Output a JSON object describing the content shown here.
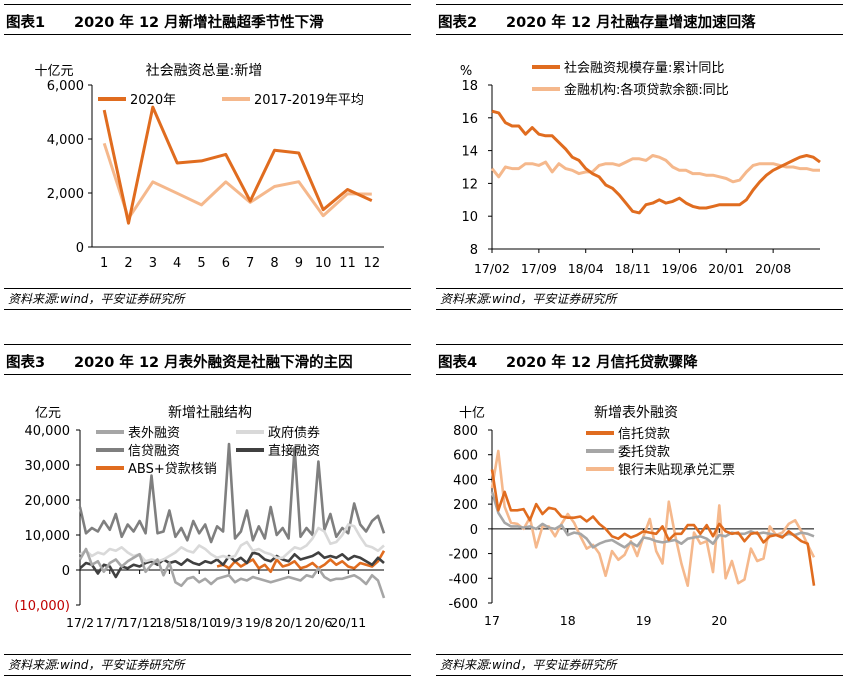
{
  "panels": [
    {
      "num": "图表1",
      "title": "2020 年 12 月新增社融超季节性下滑",
      "source": "资料来源:wind，平安证券研究所"
    },
    {
      "num": "图表2",
      "title": "2020 年 12 月社融存量增速加速回落",
      "source": "资料来源:wind，平安证券研究所"
    },
    {
      "num": "图表3",
      "title": "2020 年 12 月表外融资是社融下滑的主因",
      "source": "资料来源:wind，平安证券研究所"
    },
    {
      "num": "图表4",
      "title": "2020 年 12 月信托贷款骤降",
      "source": "资料来源:wind，平安证券研究所"
    }
  ],
  "colors": {
    "orange": "#E06C1F",
    "lightorange": "#F5B88C",
    "gray": "#A6A6A6",
    "lightgray": "#D9D9D9",
    "darkgray": "#7F7F7F",
    "black": "#404040"
  },
  "chart_data": [
    {
      "type": "line",
      "title": "社会融资总量:新增",
      "unit": "十亿元",
      "categories": [
        "1",
        "2",
        "3",
        "4",
        "5",
        "6",
        "7",
        "8",
        "9",
        "10",
        "11",
        "12"
      ],
      "ylim": [
        0,
        6000
      ],
      "yticks": [
        "0",
        "2,000",
        "4,000",
        "6,000"
      ],
      "series": [
        {
          "name": "2020年",
          "color": "#E06C1F",
          "values": [
            5070,
            880,
            5180,
            3110,
            3190,
            3430,
            1700,
            3580,
            3480,
            1380,
            2130,
            1720
          ]
        },
        {
          "name": "2017-2019年平均",
          "color": "#F5B88C",
          "values": [
            3840,
            1060,
            2410,
            1990,
            1560,
            2410,
            1650,
            2240,
            2420,
            1160,
            1970,
            1960
          ]
        }
      ]
    },
    {
      "type": "line",
      "unit": "%",
      "xlabels": [
        "17/02",
        "17/09",
        "18/04",
        "18/11",
        "19/06",
        "20/01",
        "20/08"
      ],
      "ylim": [
        8,
        18
      ],
      "yticks": [
        "8",
        "10",
        "12",
        "14",
        "16",
        "18"
      ],
      "series": [
        {
          "name": "社会融资规模存量:累计同比",
          "color": "#E06C1F",
          "values": [
            16.4,
            16.3,
            15.7,
            15.5,
            15.5,
            15.0,
            15.4,
            15.0,
            14.9,
            14.9,
            14.5,
            14.1,
            13.6,
            13.4,
            12.9,
            12.6,
            12.4,
            11.9,
            11.7,
            11.3,
            10.8,
            10.3,
            10.2,
            10.7,
            10.8,
            11.0,
            10.8,
            10.9,
            11.1,
            10.8,
            10.6,
            10.5,
            10.5,
            10.6,
            10.7,
            10.7,
            10.7,
            10.7,
            11.0,
            11.6,
            12.1,
            12.5,
            12.8,
            13.0,
            13.2,
            13.4,
            13.6,
            13.7,
            13.6,
            13.3
          ]
        },
        {
          "name": "金融机构:各项贷款余额:同比",
          "color": "#F5B88C",
          "values": [
            12.9,
            12.4,
            13.0,
            12.9,
            12.9,
            13.2,
            13.2,
            13.1,
            13.3,
            12.7,
            13.2,
            12.9,
            12.8,
            12.6,
            12.7,
            12.7,
            13.1,
            13.2,
            13.2,
            13.1,
            13.3,
            13.5,
            13.5,
            13.4,
            13.7,
            13.6,
            13.4,
            13.0,
            12.8,
            12.8,
            12.6,
            12.6,
            12.5,
            12.5,
            12.4,
            12.3,
            12.1,
            12.2,
            12.7,
            13.1,
            13.2,
            13.2,
            13.2,
            13.1,
            13.0,
            13.0,
            12.9,
            12.9,
            12.8,
            12.8
          ]
        }
      ]
    },
    {
      "type": "line",
      "title": "新增社融结构",
      "unit": "亿元",
      "xlabels": [
        "17/2",
        "17/7",
        "17/12",
        "18/5",
        "18/10",
        "19/3",
        "19/8",
        "20/1",
        "20/6",
        "20/11"
      ],
      "ylim": [
        -10000,
        40000
      ],
      "yticks": [
        "(10,000)",
        "0",
        "10,000",
        "20,000",
        "30,000",
        "40,000"
      ],
      "series": [
        {
          "name": "表外融资",
          "color": "#A6A6A6",
          "values": [
            3000,
            6000,
            1500,
            2500,
            -500,
            2000,
            3000,
            1000,
            2500,
            3500,
            4500,
            -500,
            1500,
            3000,
            -1500,
            2000,
            -3500,
            -4500,
            -2500,
            -2000,
            -3500,
            -2500,
            -4000,
            -2500,
            -2000,
            -1500,
            -3500,
            -2500,
            -3000,
            -2000,
            -2500,
            -3000,
            -3500,
            -3000,
            -2500,
            -2000,
            -2500,
            -3000,
            -1500,
            -2000,
            500,
            -2000,
            -3000,
            -2500,
            -2500,
            -2000,
            -1500,
            -2500,
            -4000,
            -1500,
            -3000,
            -8000
          ]
        },
        {
          "name": "政府债券",
          "color": "#D9D9D9",
          "values": [
            4500,
            5500,
            4000,
            5000,
            4500,
            6000,
            5500,
            6500,
            5000,
            4000,
            4500,
            2500,
            3000,
            2500,
            3000,
            4000,
            5000,
            6500,
            5500,
            5000,
            7000,
            6000,
            4500,
            3500,
            4000,
            3500,
            4000,
            7000,
            8000,
            5500,
            6000,
            5000,
            4500,
            3500,
            3500,
            5000,
            6500,
            6000,
            7000,
            9000,
            12000,
            11000,
            7500,
            8000,
            10000,
            13000,
            12500,
            9500,
            7000,
            6500,
            5500,
            7000
          ]
        },
        {
          "name": "信贷融资",
          "color": "#7F7F7F",
          "values": [
            18000,
            10500,
            12000,
            11000,
            14000,
            11500,
            16000,
            9500,
            13000,
            11000,
            14000,
            10500,
            27000,
            10500,
            11000,
            17000,
            9500,
            12000,
            8500,
            14000,
            10500,
            13000,
            8000,
            12500,
            11000,
            36000,
            9000,
            11000,
            17000,
            8500,
            12500,
            9000,
            18000,
            10000,
            12000,
            9000,
            35000,
            9500,
            12000,
            10000,
            31000,
            11500,
            16000,
            9500,
            12000,
            10500,
            19000,
            13000,
            11000,
            14000,
            15500,
            10500
          ]
        },
        {
          "name": "直接融资",
          "color": "#404040",
          "values": [
            500,
            2000,
            1500,
            -1000,
            1500,
            1000,
            -2000,
            1000,
            500,
            1500,
            1000,
            2000,
            2500,
            1500,
            3000,
            2000,
            2500,
            1500,
            3000,
            2000,
            1500,
            2500,
            2000,
            3000,
            1500,
            4000,
            2500,
            3500,
            2000,
            5000,
            4500,
            3000,
            2500,
            4000,
            3000,
            2500,
            4500,
            3000,
            3500,
            4000,
            5000,
            3500,
            4000,
            3500,
            4500,
            3000,
            4000,
            3500,
            2500,
            1500,
            3500,
            2000
          ]
        },
        {
          "name": "ABS+贷款核销",
          "color": "#E06C1F",
          "values": [
            null,
            null,
            null,
            null,
            null,
            null,
            null,
            null,
            null,
            null,
            null,
            null,
            null,
            null,
            null,
            null,
            null,
            null,
            null,
            null,
            null,
            null,
            null,
            1000,
            1500,
            500,
            2500,
            1000,
            2000,
            3000,
            500,
            1500,
            -500,
            3000,
            1000,
            1500,
            2500,
            500,
            1000,
            2000,
            500,
            1500,
            3000,
            1500,
            2500,
            1000,
            500,
            2000,
            1500,
            1000,
            2500,
            5500
          ]
        }
      ]
    },
    {
      "type": "line",
      "title": "新增表外融资",
      "unit": "十亿",
      "xlabels": [
        "17",
        "18",
        "19",
        "20"
      ],
      "ylim": [
        -600,
        800
      ],
      "yticks": [
        "-600",
        "-400",
        "-200",
        "0",
        "200",
        "400",
        "600",
        "800"
      ],
      "series": [
        {
          "name": "信托贷款",
          "color": "#E06C1F",
          "values": [
            480,
            150,
            300,
            150,
            150,
            160,
            70,
            200,
            120,
            170,
            160,
            100,
            90,
            90,
            100,
            60,
            100,
            40,
            0,
            -60,
            -80,
            -40,
            -70,
            -50,
            -20,
            -30,
            -40,
            20,
            -90,
            -40,
            -40,
            30,
            30,
            -40,
            30,
            -60,
            40,
            -20,
            -40,
            -30,
            -100,
            -40,
            -30,
            -110,
            -60,
            -50,
            -70,
            -20,
            -60,
            -100,
            -120,
            -460
          ]
        },
        {
          "name": "委托贷款",
          "color": "#A6A6A6",
          "values": [
            300,
            130,
            50,
            20,
            20,
            10,
            20,
            0,
            40,
            10,
            0,
            30,
            -50,
            -30,
            -40,
            -80,
            -150,
            -120,
            -100,
            -90,
            -120,
            -150,
            -110,
            -140,
            -70,
            -80,
            -100,
            -110,
            -100,
            -90,
            -120,
            -80,
            -70,
            -60,
            -80,
            -120,
            -50,
            -60,
            -30,
            -40,
            -40,
            -20,
            -40,
            -30,
            -40,
            -50,
            -60,
            -40,
            -50,
            -30,
            -40,
            -60
          ]
        },
        {
          "name": "银行未贴现承兑汇票",
          "color": "#F5B88C",
          "values": [
            330,
            630,
            180,
            50,
            40,
            0,
            90,
            -150,
            20,
            20,
            -60,
            40,
            120,
            50,
            -60,
            -160,
            -130,
            -200,
            -380,
            -180,
            -250,
            -210,
            -100,
            -220,
            -60,
            80,
            -180,
            -280,
            220,
            -50,
            -280,
            -460,
            -30,
            -120,
            -100,
            -350,
            190,
            -400,
            -260,
            -440,
            -410,
            -160,
            -260,
            -240,
            20,
            -50,
            -30,
            40,
            70,
            -20,
            -130,
            -230
          ]
        }
      ]
    }
  ]
}
